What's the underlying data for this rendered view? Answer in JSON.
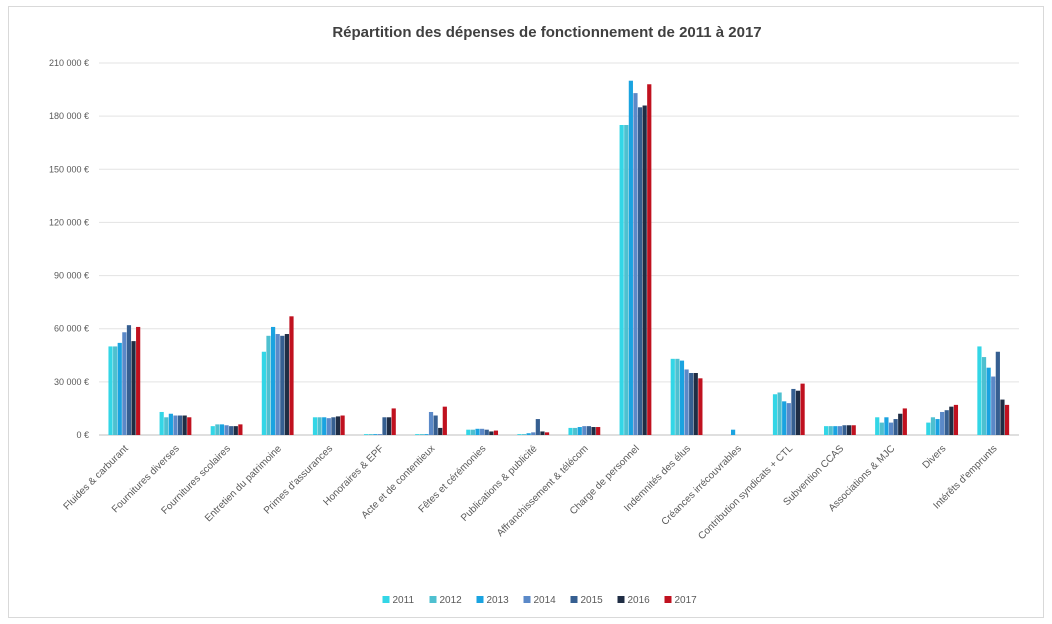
{
  "chart_data": {
    "type": "bar",
    "title": "Répartition des dépenses de fonctionnement de 2011 à 2017",
    "xlabel": "",
    "ylabel": "",
    "ylim": [
      0,
      210000
    ],
    "yticks": [
      0,
      30000,
      60000,
      90000,
      120000,
      150000,
      180000,
      210000
    ],
    "ytick_labels": [
      "0 €",
      "30 000 €",
      "60 000 €",
      "90 000 €",
      "120 000 €",
      "150 000 €",
      "180 000 €",
      "210 000 €"
    ],
    "grid": true,
    "legend_position": "bottom",
    "categories": [
      "Fluides & carburant",
      "Fournitures diverses",
      "Fournitures scolaires",
      "Entretien du patrimoine",
      "Primes d'assurances",
      "Honoraires & EPF",
      "Acte et de contentieux",
      "Fêtes et cérémonies",
      "Publications & publicité",
      "Affranchissement & télécom",
      "Charge de personnel",
      "Indemnités des élus",
      "Créances irrécouvrables",
      "Contribution syndicats + CTL",
      "Subvention CCAS",
      "Associations & MJC",
      "Divers",
      "Intérêts d'emprunts"
    ],
    "series": [
      {
        "name": "2011",
        "color": "#33d6e6",
        "values": [
          50000,
          13000,
          5000,
          47000,
          10000,
          500,
          500,
          3000,
          500,
          4000,
          175000,
          43000,
          0,
          23000,
          5000,
          10000,
          7000,
          50000
        ]
      },
      {
        "name": "2012",
        "color": "#4ec0d0",
        "values": [
          50000,
          10000,
          6000,
          56000,
          10000,
          500,
          500,
          3000,
          500,
          4000,
          175000,
          43000,
          0,
          24000,
          5000,
          7000,
          10000,
          44000
        ]
      },
      {
        "name": "2013",
        "color": "#1aa3e0",
        "values": [
          52000,
          12000,
          6000,
          61000,
          10000,
          500,
          500,
          3500,
          1000,
          4500,
          200000,
          42000,
          3000,
          19000,
          5000,
          10000,
          9000,
          38000
        ]
      },
      {
        "name": "2014",
        "color": "#5b89c8",
        "values": [
          58000,
          11000,
          5500,
          57000,
          9500,
          500,
          13000,
          3500,
          1500,
          5000,
          193000,
          37000,
          0,
          18000,
          5000,
          7000,
          13000,
          33000
        ]
      },
      {
        "name": "2015",
        "color": "#365f91",
        "values": [
          62000,
          11000,
          5000,
          56000,
          10000,
          10000,
          11000,
          3000,
          9000,
          5000,
          185000,
          35000,
          0,
          26000,
          5500,
          9000,
          14000,
          47000
        ]
      },
      {
        "name": "2016",
        "color": "#1f2d44",
        "values": [
          53000,
          11000,
          5000,
          57000,
          10500,
          10000,
          4000,
          2000,
          2000,
          4500,
          186000,
          35000,
          0,
          25000,
          5500,
          12000,
          16000,
          20000
        ]
      },
      {
        "name": "2017",
        "color": "#c0111f",
        "values": [
          61000,
          10000,
          6000,
          67000,
          11000,
          15000,
          16000,
          2500,
          1500,
          4500,
          198000,
          32000,
          0,
          29000,
          5500,
          15000,
          17000,
          17000
        ]
      }
    ]
  }
}
